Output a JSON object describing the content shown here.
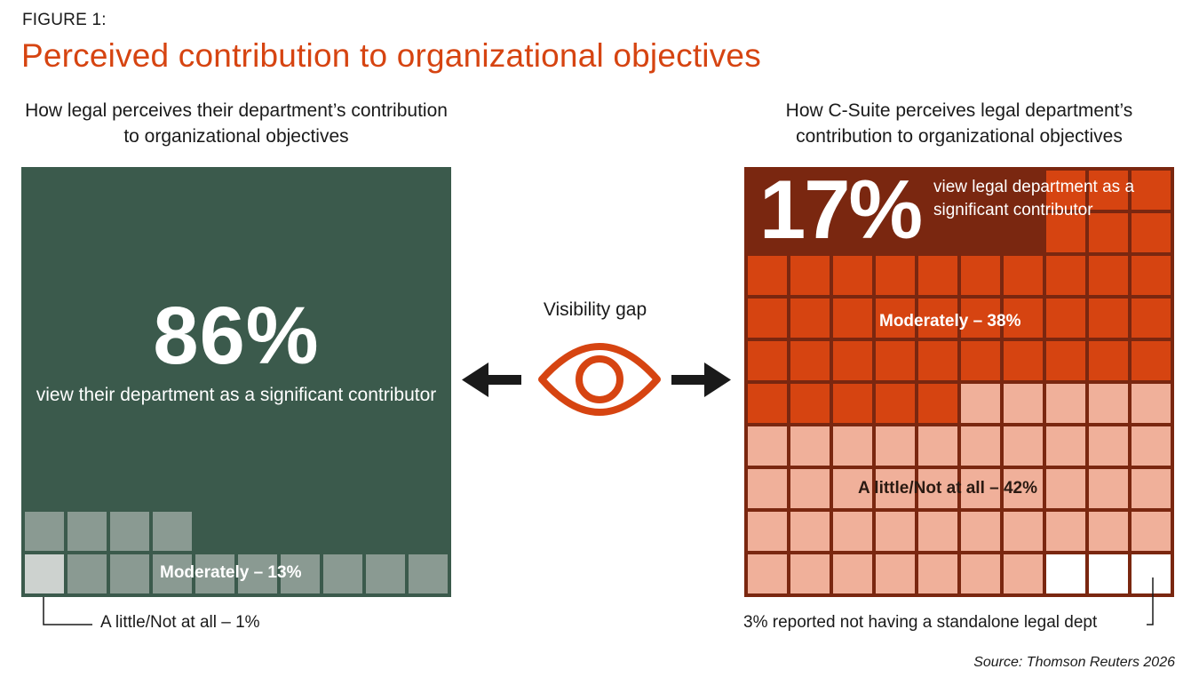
{
  "figure_label": "FIGURE 1:",
  "title": "Perceived contribution to organizational objectives",
  "source": "Source: Thomson Reuters 2026",
  "gap": {
    "label": "Visibility gap",
    "icon": "eye-icon"
  },
  "colors": {
    "accent": "#d64411",
    "legal_significant": "#3b5a4c",
    "legal_moderately": "#8a9a92",
    "legal_little": "#cdd2cf",
    "csuite_significant": "#7a2710",
    "csuite_moderately": "#d64411",
    "csuite_little": "#f0b09a",
    "csuite_no_dept": "#ffffff"
  },
  "left": {
    "subtitle": "How legal perceives their department’s contribution to organizational objectives",
    "big_value": "86%",
    "big_text": "view their department as a significant contributor",
    "moderately_label": "Moderately – 13%",
    "callout": "A little/Not at all – 1%"
  },
  "right": {
    "subtitle": "How C-Suite perceives legal department’s contribution to organizational objectives",
    "big_value": "17%",
    "big_text": "view legal department as a significant contributor",
    "moderately_label": "Moderately – 38%",
    "little_label": "A little/Not at all – 42%",
    "callout": "3% reported not having a standalone legal dept"
  },
  "chart_data": [
    {
      "type": "waffle",
      "title": "How legal perceives their department’s contribution to organizational objectives",
      "grid": [
        10,
        10
      ],
      "categories": [
        "Significant contributor",
        "Moderately",
        "A little/Not at all"
      ],
      "values": [
        86,
        13,
        1
      ],
      "unit": "%"
    },
    {
      "type": "waffle",
      "title": "How C-Suite perceives legal department’s contribution to organizational objectives",
      "grid": [
        10,
        10
      ],
      "categories": [
        "Significant contributor",
        "Moderately",
        "A little/Not at all",
        "No standalone legal dept"
      ],
      "values": [
        17,
        38,
        42,
        3
      ],
      "unit": "%"
    }
  ]
}
